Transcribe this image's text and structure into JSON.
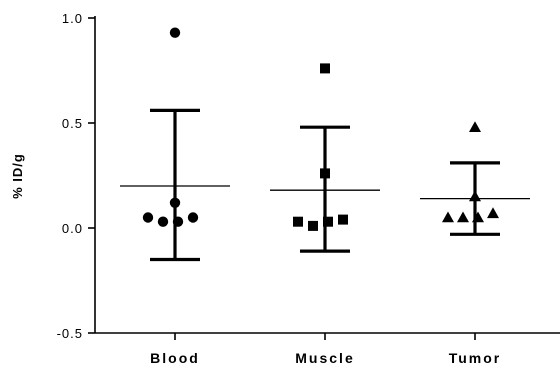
{
  "chart_data": {
    "type": "scatter",
    "title": "",
    "ylabel": "% ID/g",
    "xlabel": "",
    "ylim": [
      -0.5,
      1.0
    ],
    "yticks": [
      -0.5,
      0.0,
      0.5,
      1.0
    ],
    "ytick_labels": [
      "-0.5",
      "0.0",
      "0.5",
      "1.0"
    ],
    "grid": false,
    "categories": [
      "Blood",
      "Muscle",
      "Tumor"
    ],
    "groups": [
      {
        "category": "Blood",
        "marker": "circle",
        "points": [
          0.93,
          0.12,
          0.05,
          0.03,
          0.03,
          0.05
        ],
        "mean": 0.2,
        "error_upper": 0.56,
        "error_lower": -0.15
      },
      {
        "category": "Muscle",
        "marker": "square",
        "points": [
          0.76,
          0.26,
          0.03,
          0.01,
          0.03,
          0.04
        ],
        "mean": 0.18,
        "error_upper": 0.48,
        "error_lower": -0.11
      },
      {
        "category": "Tumor",
        "marker": "triangle",
        "points": [
          0.48,
          0.15,
          0.05,
          0.05,
          0.05,
          0.07
        ],
        "mean": 0.14,
        "error_upper": 0.31,
        "error_lower": -0.03
      }
    ],
    "colors": {
      "marker": "#000000",
      "axis": "#000000"
    }
  }
}
